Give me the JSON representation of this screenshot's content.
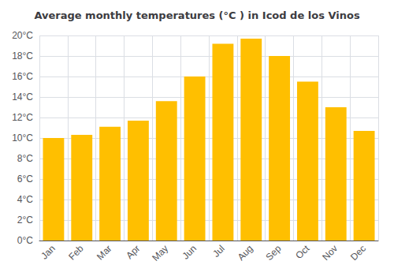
{
  "chart_data": {
    "type": "bar",
    "title": "Average monthly temperatures (°C ) in Icod de los Vinos",
    "categories": [
      "Jan",
      "Feb",
      "Mar",
      "Apr",
      "May",
      "Jun",
      "Jul",
      "Aug",
      "Sep",
      "Oct",
      "Nov",
      "Dec"
    ],
    "values": [
      10.0,
      10.3,
      11.1,
      11.7,
      13.6,
      16.0,
      19.2,
      19.7,
      18.0,
      15.5,
      13.0,
      10.7
    ],
    "color": "#FFBF00",
    "ylim": [
      0,
      20
    ],
    "yticks": [
      {
        "value": 0,
        "label": "0°C"
      },
      {
        "value": 2,
        "label": "2°C"
      },
      {
        "value": 4,
        "label": "4°C"
      },
      {
        "value": 6,
        "label": "6°C"
      },
      {
        "value": 8,
        "label": "8°C"
      },
      {
        "value": 10,
        "label": "10°C"
      },
      {
        "value": 12,
        "label": "12°C"
      },
      {
        "value": 14,
        "label": "14°C"
      },
      {
        "value": 16,
        "label": "16°C"
      },
      {
        "value": 18,
        "label": "18°C"
      },
      {
        "value": 20,
        "label": "20°C"
      }
    ],
    "grid": true
  }
}
